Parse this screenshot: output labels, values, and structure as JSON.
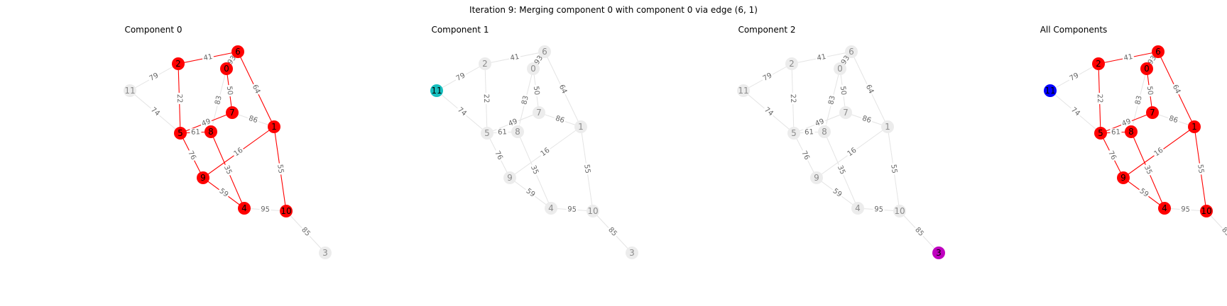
{
  "title": "Iteration 9: Merging component 0 with component 0 via edge (6, 1)",
  "colors": {
    "inactive": "#ececec",
    "inactive_edge": "#e4e4e4",
    "inactive_text": "#8c8c8c",
    "edge_label": "#666666",
    "red": "#ff0000",
    "cyan": "#17bfbf",
    "magenta": "#bf00bf",
    "blue": "#0000ff"
  },
  "nodes": [
    "0",
    "1",
    "2",
    "3",
    "4",
    "5",
    "6",
    "7",
    "8",
    "9",
    "10",
    "11"
  ],
  "edges": [
    {
      "u": "2",
      "v": "6",
      "w": "41"
    },
    {
      "u": "0",
      "v": "6",
      "w": "93"
    },
    {
      "u": "2",
      "v": "11",
      "w": "79"
    },
    {
      "u": "0",
      "v": "8",
      "w": "83"
    },
    {
      "u": "0",
      "v": "7",
      "w": "50"
    },
    {
      "u": "6",
      "v": "1",
      "w": "64"
    },
    {
      "u": "11",
      "v": "5",
      "w": "74"
    },
    {
      "u": "2",
      "v": "5",
      "w": "22"
    },
    {
      "u": "5",
      "v": "7",
      "w": "49"
    },
    {
      "u": "5",
      "v": "8",
      "w": "61"
    },
    {
      "u": "7",
      "v": "1",
      "w": "86"
    },
    {
      "u": "5",
      "v": "9",
      "w": "76"
    },
    {
      "u": "9",
      "v": "1",
      "w": "16"
    },
    {
      "u": "8",
      "v": "4",
      "w": "35"
    },
    {
      "u": "1",
      "v": "10",
      "w": "55"
    },
    {
      "u": "9",
      "v": "4",
      "w": "59"
    },
    {
      "u": "4",
      "v": "10",
      "w": "95"
    },
    {
      "u": "10",
      "v": "3",
      "w": "85"
    }
  ],
  "panels": [
    {
      "title": "Component 0",
      "node_colors": {
        "0": "red",
        "1": "red",
        "2": "red",
        "4": "red",
        "5": "red",
        "6": "red",
        "7": "red",
        "8": "red",
        "9": "red",
        "10": "red"
      },
      "highlight_edges": [
        [
          2,
          6
        ],
        [
          0,
          7
        ],
        [
          6,
          1
        ],
        [
          2,
          5
        ],
        [
          5,
          7
        ],
        [
          5,
          8
        ],
        [
          5,
          9
        ],
        [
          9,
          1
        ],
        [
          8,
          4
        ],
        [
          1,
          10
        ],
        [
          9,
          4
        ]
      ]
    },
    {
      "title": "Component 1",
      "node_colors": {
        "11": "cyan"
      },
      "highlight_edges": []
    },
    {
      "title": "Component 2",
      "node_colors": {
        "3": "magenta"
      },
      "highlight_edges": []
    },
    {
      "title": "All Components",
      "node_colors": {
        "0": "red",
        "1": "red",
        "2": "red",
        "4": "red",
        "5": "red",
        "6": "red",
        "7": "red",
        "8": "red",
        "9": "red",
        "10": "red",
        "11": "blue",
        "3": "cyan"
      },
      "highlight_edges": [
        [
          2,
          6
        ],
        [
          0,
          7
        ],
        [
          6,
          1
        ],
        [
          2,
          5
        ],
        [
          5,
          7
        ],
        [
          5,
          8
        ],
        [
          5,
          9
        ],
        [
          9,
          1
        ],
        [
          8,
          4
        ],
        [
          1,
          10
        ],
        [
          9,
          4
        ]
      ]
    }
  ]
}
